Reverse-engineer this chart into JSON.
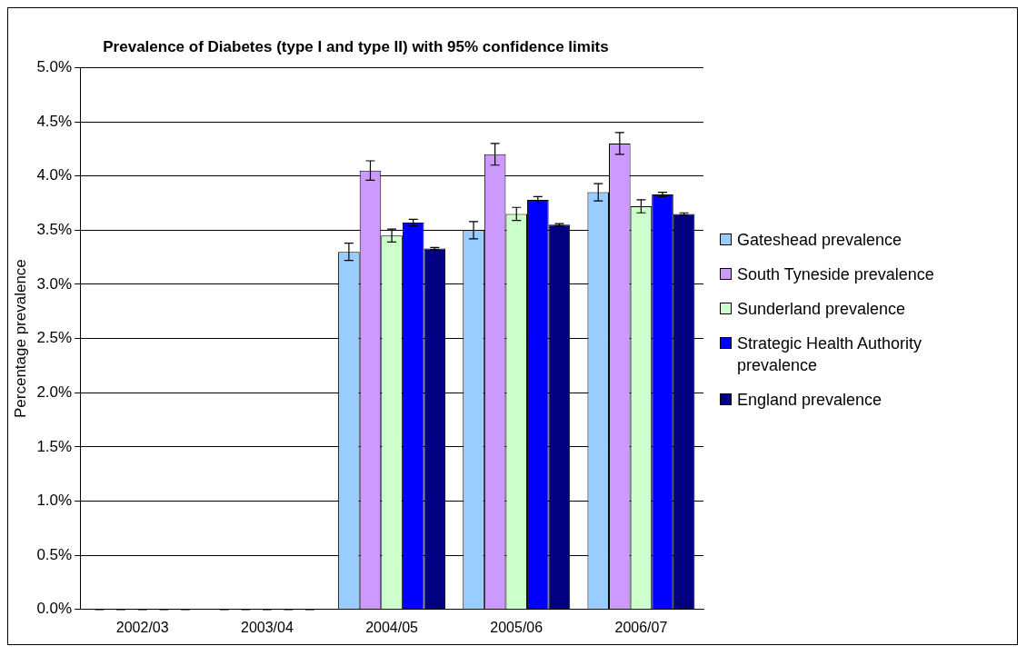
{
  "chart_data": {
    "type": "bar",
    "title": "Prevalence of Diabetes (type I and type II) with 95% confidence limits",
    "ylabel": "Percentage prevalence",
    "categories": [
      "2002/03",
      "2003/04",
      "2004/05",
      "2005/06",
      "2006/07"
    ],
    "series": [
      {
        "name": "Gateshead prevalence",
        "color": "#99ccff",
        "values": [
          0,
          0,
          3.3,
          3.5,
          3.85
        ],
        "errors": [
          0,
          0,
          0.08,
          0.08,
          0.08
        ]
      },
      {
        "name": "South Tyneside prevalence",
        "color": "#cc99ff",
        "values": [
          0,
          0,
          4.05,
          4.2,
          4.3
        ],
        "errors": [
          0,
          0,
          0.09,
          0.1,
          0.1
        ]
      },
      {
        "name": "Sunderland prevalence",
        "color": "#ccffcc",
        "values": [
          0,
          0,
          3.45,
          3.65,
          3.72
        ],
        "errors": [
          0,
          0,
          0.06,
          0.06,
          0.06
        ]
      },
      {
        "name": "Strategic Health Authority prevalence",
        "color": "#0000ff",
        "values": [
          0,
          0,
          3.57,
          3.78,
          3.83
        ],
        "errors": [
          0,
          0,
          0.03,
          0.03,
          0.02
        ]
      },
      {
        "name": "England prevalence",
        "color": "#000080",
        "values": [
          0,
          0,
          3.33,
          3.55,
          3.65
        ],
        "errors": [
          0,
          0,
          0.01,
          0.01,
          0.01
        ]
      }
    ],
    "ylim": [
      0,
      5
    ],
    "yticks": [
      {
        "value": 0,
        "label": "0.0%"
      },
      {
        "value": 0.5,
        "label": "0.5%"
      },
      {
        "value": 1,
        "label": "1.0%"
      },
      {
        "value": 1.5,
        "label": "1.5%"
      },
      {
        "value": 2,
        "label": "2.0%"
      },
      {
        "value": 2.5,
        "label": "2.5%"
      },
      {
        "value": 3,
        "label": "3.0%"
      },
      {
        "value": 3.5,
        "label": "3.5%"
      },
      {
        "value": 4,
        "label": "4.0%"
      },
      {
        "value": 4.5,
        "label": "4.5%"
      },
      {
        "value": 5,
        "label": "5.0%"
      }
    ],
    "grid": "y",
    "legend": "right"
  }
}
